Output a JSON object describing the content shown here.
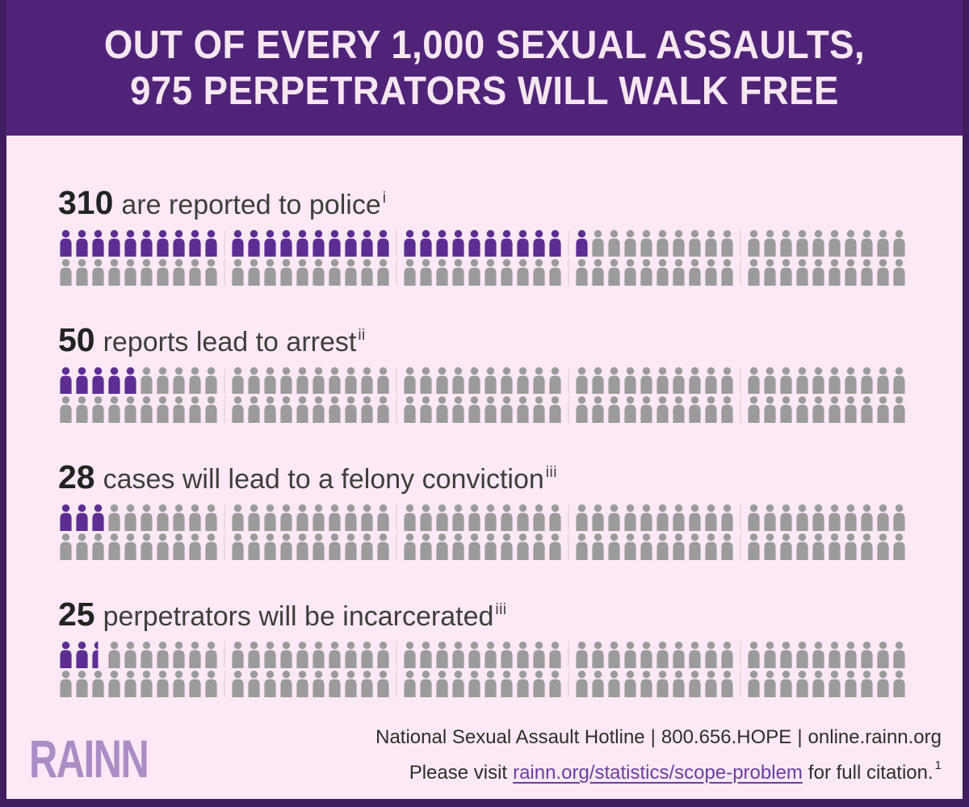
{
  "header": {
    "title_line1": "OUT OF EVERY 1,000 SEXUAL ASSAULTS,",
    "title_line2": "975 PERPETRATORS WILL WALK FREE"
  },
  "chart_data": {
    "type": "pictogram",
    "title": "Out of every 1,000 sexual assaults, 975 perpetrators will walk free",
    "unit_per_icon": 10,
    "total_icons_per_section": 100,
    "rows_per_section": 2,
    "groups_per_row": 5,
    "icons_per_group": 10,
    "highlight_color": "#5c2e93",
    "muted_color": "#9b9b9b",
    "sections": [
      {
        "value": "310",
        "label": "are reported to police",
        "citation": "i",
        "highlight_icons": 31,
        "half_icon": false
      },
      {
        "value": "50",
        "label": "reports lead to arrest",
        "citation": "ii",
        "highlight_icons": 5,
        "half_icon": false
      },
      {
        "value": "28",
        "label": "cases will lead to a felony conviction",
        "citation": "iii",
        "highlight_icons": 3,
        "half_icon": false
      },
      {
        "value": "25",
        "label": "perpetrators will be incarcerated",
        "citation": "iii",
        "highlight_icons": 2,
        "half_icon": true
      }
    ]
  },
  "footer": {
    "logo": "RAINN",
    "hotline_name": "National Sexual Assault Hotline",
    "separator": "|",
    "hotline_phone": "800.656.HOPE",
    "hotline_web": "online.rainn.org",
    "citation_prefix": "Please visit",
    "citation_link": "rainn.org/statistics/scope-problem",
    "citation_suffix": "for full citation.",
    "citation_sup": "1"
  },
  "colors": {
    "header_bg": "#4f2478",
    "body_bg": "#fce9f5",
    "border": "#3f1d5f",
    "highlight": "#5c2e93",
    "muted": "#9b9b9b",
    "logo": "#ab8cc5",
    "link": "#6b3fa2",
    "title_text": "#f8e6f1"
  }
}
